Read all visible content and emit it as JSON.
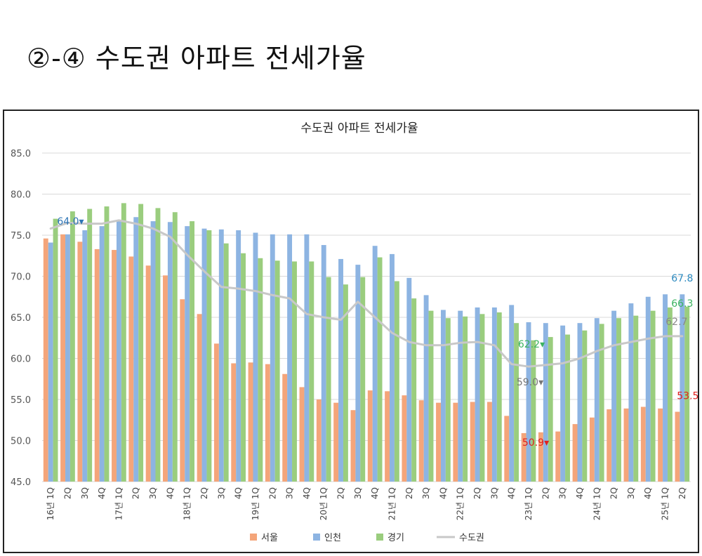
{
  "page": {
    "heading": "②-④ 수도권 아파트 전세가율"
  },
  "chart_data": {
    "type": "bar",
    "title": "수도권 아파트 전세가율",
    "xlabel": "",
    "ylabel": "",
    "ylim": [
      45,
      85
    ],
    "yticks": [
      "45.0",
      "50.0",
      "55.0",
      "60.0",
      "65.0",
      "70.0",
      "75.0",
      "80.0",
      "85.0"
    ],
    "grid": true,
    "legend_position": "bottom",
    "categories": [
      "16년 1Q",
      "2Q",
      "3Q",
      "4Q",
      "17년 1Q",
      "2Q",
      "3Q",
      "4Q",
      "18년 1Q",
      "2Q",
      "3Q",
      "4Q",
      "19년 1Q",
      "2Q",
      "3Q",
      "4Q",
      "20년 1Q",
      "2Q",
      "3Q",
      "4Q",
      "21년 1Q",
      "2Q",
      "3Q",
      "4Q",
      "22년 1Q",
      "2Q",
      "3Q",
      "4Q",
      "23년 1Q",
      "2Q",
      "3Q",
      "4Q",
      "24년 1Q",
      "2Q",
      "3Q",
      "4Q",
      "25년 1Q",
      "2Q"
    ],
    "series": [
      {
        "name": "서울",
        "type": "bar",
        "color": "#F4A57A",
        "values": [
          74.6,
          75.1,
          74.2,
          73.3,
          73.2,
          72.4,
          71.3,
          70.1,
          67.2,
          65.4,
          61.8,
          59.4,
          59.5,
          59.3,
          58.1,
          56.5,
          55.0,
          54.6,
          53.7,
          56.1,
          56.0,
          55.5,
          54.9,
          54.6,
          54.6,
          54.7,
          54.7,
          53.0,
          50.9,
          51.0,
          51.1,
          52.0,
          52.8,
          53.8,
          53.9,
          54.1,
          53.9,
          53.5
        ]
      },
      {
        "name": "인천",
        "type": "bar",
        "color": "#8DB4E2",
        "values": [
          74.1,
          75.1,
          75.6,
          76.1,
          76.7,
          77.2,
          76.7,
          76.6,
          76.1,
          75.8,
          75.7,
          75.6,
          75.3,
          75.1,
          75.1,
          75.1,
          73.8,
          72.1,
          71.4,
          73.7,
          72.7,
          69.8,
          67.7,
          65.9,
          65.8,
          66.2,
          66.2,
          66.5,
          64.4,
          64.3,
          64.0,
          64.3,
          64.9,
          65.8,
          66.7,
          67.5,
          67.8,
          67.8
        ]
      },
      {
        "name": "경기",
        "type": "bar",
        "color": "#9ACD7E",
        "values": [
          77.0,
          77.9,
          78.2,
          78.5,
          78.9,
          78.8,
          78.3,
          77.8,
          76.7,
          75.6,
          74.0,
          72.8,
          72.2,
          71.9,
          71.8,
          71.8,
          69.9,
          69.0,
          69.9,
          72.3,
          69.4,
          67.3,
          65.8,
          64.9,
          65.1,
          65.4,
          65.6,
          64.3,
          62.2,
          62.6,
          62.9,
          63.4,
          64.2,
          64.9,
          65.2,
          65.8,
          66.2,
          66.3
        ]
      },
      {
        "name": "수도권",
        "type": "line",
        "color": "#C8C8C8",
        "values": [
          75.8,
          76.5,
          76.4,
          76.4,
          76.8,
          76.4,
          75.8,
          74.8,
          72.6,
          70.6,
          68.7,
          68.5,
          68.2,
          67.7,
          67.3,
          65.4,
          65.0,
          64.7,
          66.9,
          65.0,
          63.1,
          62.0,
          61.6,
          61.6,
          61.9,
          62.0,
          61.6,
          59.3,
          59.0,
          59.2,
          59.4,
          60.0,
          60.9,
          61.6,
          62.0,
          62.4,
          62.7,
          62.7
        ]
      }
    ],
    "annotations": [
      {
        "text": "50.9▾",
        "color": "#E02020",
        "series": "서울",
        "category": "23년 1Q"
      },
      {
        "text": "62.2▾",
        "color": "#3BB35F",
        "series": "경기",
        "category": "23년 1Q"
      },
      {
        "text": "59.0▾",
        "color": "#777777",
        "series": "수도권",
        "category": "23년 1Q"
      },
      {
        "text": "64.0▾",
        "color": "#2E75B6",
        "series": "인천",
        "category": "2Q"
      },
      {
        "text": "67.8",
        "color": "#2E8BC0",
        "series": "인천",
        "category": "2Q"
      },
      {
        "text": "66.3",
        "color": "#3BB35F",
        "series": "경기",
        "category": "2Q"
      },
      {
        "text": "62.7",
        "color": "#888888",
        "series": "수도권",
        "category": "2Q"
      },
      {
        "text": "53.5",
        "color": "#E02020",
        "series": "서울",
        "category": "2Q"
      }
    ]
  }
}
